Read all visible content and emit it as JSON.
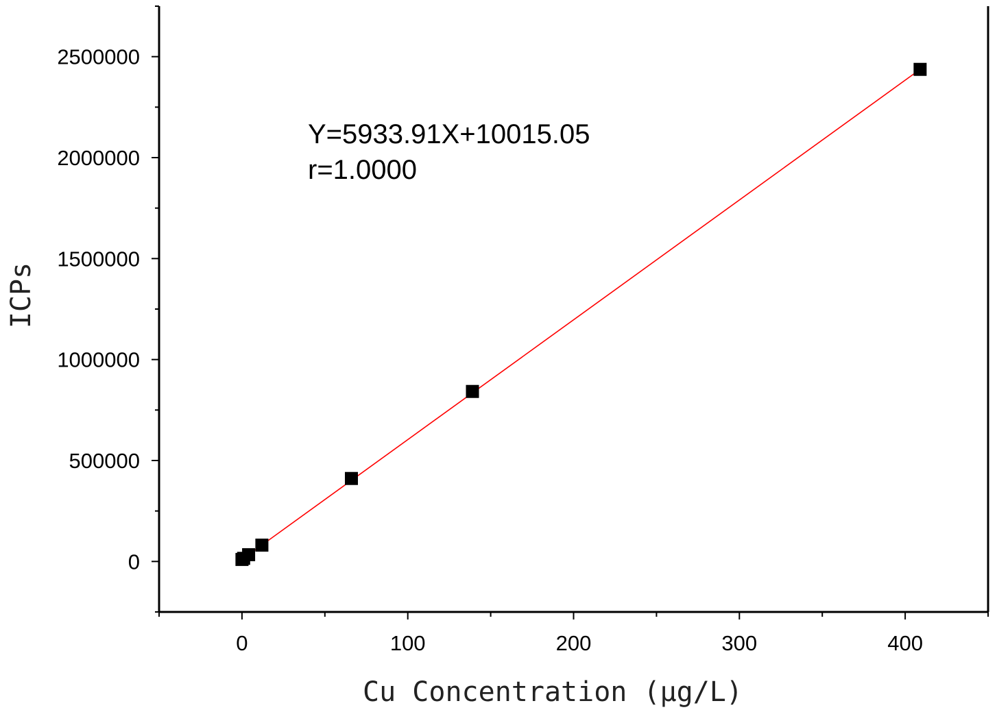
{
  "chart_data": {
    "type": "scatter",
    "title": "",
    "xlabel": "Cu Concentration (μg/L)",
    "ylabel": "ICPs",
    "xlim": [
      -50,
      450
    ],
    "ylim": [
      -250000,
      2750000
    ],
    "x_ticks": [
      0,
      100,
      200,
      300,
      400
    ],
    "x_tick_labels": [
      "0",
      "100",
      "200",
      "300",
      "400"
    ],
    "x_minor_ticks": [
      -50,
      50,
      150,
      250,
      350,
      450
    ],
    "y_ticks": [
      0,
      500000,
      1000000,
      1500000,
      2000000,
      2500000
    ],
    "y_tick_labels": [
      "0",
      "500000",
      "1000000",
      "1500000",
      "2000000",
      "2500000"
    ],
    "y_minor_ticks": [
      -250000,
      250000,
      750000,
      1250000,
      1750000,
      2250000,
      2750000
    ],
    "grid": false,
    "series": [
      {
        "marker": "square",
        "color": "#000000",
        "x": [
          0,
          1,
          4,
          12,
          66,
          139,
          409
        ],
        "y": [
          10000,
          15500,
          33600,
          81000,
          411000,
          842000,
          2437000
        ]
      }
    ],
    "fit_line": {
      "color": "#ff0000",
      "slope": 5933.91,
      "intercept": 10015.05,
      "x_range": [
        0,
        409
      ]
    },
    "annotations": [
      "Y=5933.91X+10015.05",
      "r=1.0000"
    ]
  }
}
